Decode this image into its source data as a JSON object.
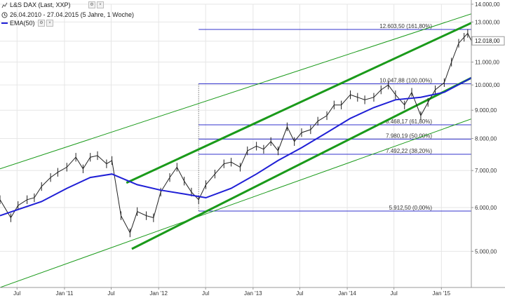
{
  "header": {
    "instrument": "L&S DAX (Last, XXP)",
    "period": "26.04.2010 - 27.04.2015 (5 Jahre, 1 Woche)",
    "indicator": "EMA(50)"
  },
  "colors": {
    "price": "#222222",
    "ema": "#1f1fd6",
    "fib": "#3333cc",
    "channel": "#1a9a1a",
    "grid": "#e6e6e6"
  },
  "icons": [
    "settings-icon",
    "clock-icon",
    "close-icon"
  ],
  "chart_data": {
    "type": "line",
    "y_scale": "log",
    "ylim": [
      4300,
      14000
    ],
    "xlim": [
      "2010-04-26",
      "2015-04-27"
    ],
    "x_ticks": [
      {
        "label": "Jul",
        "date": "2010-07-01"
      },
      {
        "label": "Jan '11",
        "date": "2011-01-01"
      },
      {
        "label": "Jul",
        "date": "2011-07-01"
      },
      {
        "label": "Jan '12",
        "date": "2012-01-01"
      },
      {
        "label": "Jul",
        "date": "2012-07-01"
      },
      {
        "label": "Jan '13",
        "date": "2013-01-01"
      },
      {
        "label": "Jul",
        "date": "2013-07-01"
      },
      {
        "label": "Jan '14",
        "date": "2014-01-01"
      },
      {
        "label": "Jul",
        "date": "2014-07-01"
      },
      {
        "label": "Jan '15",
        "date": "2015-01-01"
      }
    ],
    "y_ticks": [
      {
        "label": "5.000,00",
        "value": 5000
      },
      {
        "label": "6.000,00",
        "value": 6000
      },
      {
        "label": "7.000,00",
        "value": 7000
      },
      {
        "label": "8.000,00",
        "value": 8000
      },
      {
        "label": "9.000,00",
        "value": 9000
      },
      {
        "label": "10.000,00",
        "value": 10000
      },
      {
        "label": "11.000,00",
        "value": 11000
      },
      {
        "label": "12.000,00",
        "value": 12000
      },
      {
        "label": "13.000,00",
        "value": 13000
      },
      {
        "label": "14.000,00",
        "value": 14000
      }
    ],
    "last_value": {
      "label": "12.018,00",
      "value": 12018
    },
    "series": [
      {
        "name": "L&S DAX (Last, XXP)",
        "x": [
          "2010-04-26",
          "2010-06-07",
          "2010-07-05",
          "2010-08-09",
          "2010-09-06",
          "2010-10-04",
          "2010-11-08",
          "2010-12-06",
          "2011-01-10",
          "2011-02-14",
          "2011-03-14",
          "2011-04-11",
          "2011-05-09",
          "2011-06-13",
          "2011-07-04",
          "2011-08-08",
          "2011-09-12",
          "2011-10-10",
          "2011-11-14",
          "2011-12-12",
          "2012-01-09",
          "2012-02-13",
          "2012-03-12",
          "2012-04-09",
          "2012-05-07",
          "2012-06-04",
          "2012-07-02",
          "2012-08-06",
          "2012-09-10",
          "2012-10-08",
          "2012-11-12",
          "2012-12-10",
          "2013-01-14",
          "2013-02-11",
          "2013-03-11",
          "2013-04-08",
          "2013-05-13",
          "2013-06-10",
          "2013-07-08",
          "2013-08-12",
          "2013-09-09",
          "2013-10-14",
          "2013-11-11",
          "2013-12-09",
          "2014-01-13",
          "2014-02-10",
          "2014-03-10",
          "2014-04-14",
          "2014-05-12",
          "2014-06-09",
          "2014-07-07",
          "2014-08-11",
          "2014-09-08",
          "2014-10-13",
          "2014-11-10",
          "2014-12-08",
          "2015-01-12",
          "2015-02-09",
          "2015-03-09",
          "2015-03-30",
          "2015-04-13",
          "2015-04-27"
        ],
        "values": [
          6200,
          5750,
          6050,
          6200,
          6250,
          6550,
          6800,
          6950,
          7100,
          7400,
          7050,
          7400,
          7450,
          7200,
          7300,
          5800,
          5400,
          5900,
          5800,
          5750,
          6400,
          6800,
          7100,
          6700,
          6400,
          6200,
          6600,
          6900,
          7200,
          7250,
          7100,
          7600,
          7750,
          7650,
          7900,
          7600,
          8400,
          7900,
          8200,
          8300,
          8600,
          8800,
          9200,
          9200,
          9600,
          9500,
          9400,
          9500,
          9800,
          10000,
          9600,
          9200,
          9700,
          8800,
          9300,
          9800,
          10100,
          11000,
          11900,
          12200,
          12400,
          12018
        ]
      },
      {
        "name": "EMA(50)",
        "x": [
          "2010-04-26",
          "2010-07-05",
          "2010-10-04",
          "2011-01-10",
          "2011-04-11",
          "2011-07-04",
          "2011-10-10",
          "2012-01-09",
          "2012-04-09",
          "2012-07-02",
          "2012-10-08",
          "2013-01-14",
          "2013-04-08",
          "2013-07-08",
          "2013-10-14",
          "2014-01-13",
          "2014-04-14",
          "2014-07-07",
          "2014-10-13",
          "2015-01-12",
          "2015-04-27"
        ],
        "values": [
          5800,
          5950,
          6150,
          6500,
          6800,
          6900,
          6600,
          6450,
          6350,
          6250,
          6500,
          6900,
          7300,
          7700,
          8200,
          8700,
          9100,
          9400,
          9500,
          9700,
          10300
        ]
      }
    ],
    "fibonacci": [
      {
        "label": "12.603,50 (161,80%)",
        "value": 12603.5
      },
      {
        "label": "10.047,88 (100,00%)",
        "value": 10047.88
      },
      {
        "label": "8.468,17 (61,80%)",
        "value": 8468.17
      },
      {
        "label": "7.980,19 (50,00%)",
        "value": 7980.19
      },
      {
        "label": "7.492,22 (38,20%)",
        "value": 7492.22
      },
      {
        "label": "5.912,50 (0,00%)",
        "value": 5912.5
      }
    ],
    "channel_lines": [
      {
        "name": "outer-upper",
        "x": [
          "2010-04-26",
          "2015-04-27"
        ],
        "values": [
          7050,
          13450
        ]
      },
      {
        "name": "upper",
        "x": [
          "2011-08-29",
          "2015-04-27"
        ],
        "values": [
          6650,
          12950
        ]
      },
      {
        "name": "lower",
        "x": [
          "2011-09-19",
          "2015-04-27"
        ],
        "values": [
          5050,
          10300
        ]
      },
      {
        "name": "outer-lower",
        "x": [
          "2010-04-26",
          "2015-04-27"
        ],
        "values": [
          4300,
          8680
        ]
      }
    ],
    "marker_line_date": "2012-06-04"
  }
}
